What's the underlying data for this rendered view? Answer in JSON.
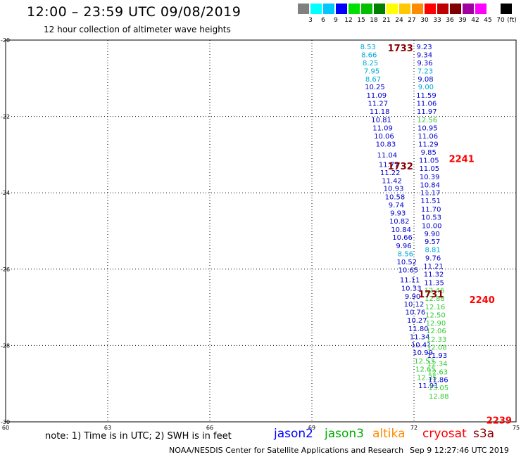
{
  "title": "12:00 – 23:59 UTC 09/08/2019",
  "subtitle": "12 hour collection of altimeter wave heights",
  "colorbar": {
    "unit": "(ft)",
    "stops": [
      {
        "label": "3",
        "color": "#808080"
      },
      {
        "label": "6",
        "color": "#00ffff"
      },
      {
        "label": "9",
        "color": "#00c8ff"
      },
      {
        "label": "12",
        "color": "#0000ff"
      },
      {
        "label": "15",
        "color": "#00e000"
      },
      {
        "label": "18",
        "color": "#00c000"
      },
      {
        "label": "21",
        "color": "#008000"
      },
      {
        "label": "24",
        "color": "#ffff00"
      },
      {
        "label": "27",
        "color": "#ffc800"
      },
      {
        "label": "30",
        "color": "#ff8c00"
      },
      {
        "label": "33",
        "color": "#ff0000"
      },
      {
        "label": "36",
        "color": "#c00000"
      },
      {
        "label": "39",
        "color": "#800000"
      },
      {
        "label": "42",
        "color": "#a000a0"
      },
      {
        "label": "45",
        "color": "#ff00ff"
      },
      {
        "label": "70",
        "color": "#ffffff"
      },
      {
        "label": "",
        "color": "#000000"
      }
    ]
  },
  "chart_data": {
    "type": "scatter",
    "xlim": [
      60,
      75
    ],
    "ylim": [
      -30,
      -20
    ],
    "x_ticks": [
      "60",
      "63",
      "66",
      "69",
      "72",
      "75"
    ],
    "y_ticks": [
      "-20",
      "-22",
      "-24",
      "-26",
      "-28",
      "-30"
    ],
    "grid": true,
    "track_labels": [
      {
        "text": "1733",
        "x": 71.6,
        "y": -20.2,
        "color": "#8b0000"
      },
      {
        "text": "1732",
        "x": 71.6,
        "y": -23.3,
        "color": "#8b0000"
      },
      {
        "text": "1731",
        "x": 72.5,
        "y": -26.65,
        "color": "#8b0000"
      },
      {
        "text": "2241",
        "x": 73.4,
        "y": -23.1,
        "color": "#ff0000"
      },
      {
        "text": "2240",
        "x": 74.0,
        "y": -26.8,
        "color": "#ff0000"
      },
      {
        "text": "2239",
        "x": 74.5,
        "y": -29.95,
        "color": "#ff0000"
      }
    ],
    "series": [
      {
        "points": [
          {
            "x": 70.65,
            "y": -20.17,
            "label": "8.53",
            "color": "#00a8d8"
          },
          {
            "x": 70.68,
            "y": -20.38,
            "label": "8.66",
            "color": "#00a8d8"
          },
          {
            "x": 70.72,
            "y": -20.59,
            "label": "8.25",
            "color": "#00a8d8"
          },
          {
            "x": 70.76,
            "y": -20.8,
            "label": "7.95",
            "color": "#00a8d8"
          },
          {
            "x": 70.8,
            "y": -21.01,
            "label": "8.67",
            "color": "#00a8d8"
          },
          {
            "x": 70.85,
            "y": -21.22,
            "label": "10.25",
            "color": "#0000cc"
          },
          {
            "x": 70.9,
            "y": -21.44,
            "label": "11.09",
            "color": "#0000cc"
          },
          {
            "x": 70.94,
            "y": -21.65,
            "label": "11.27",
            "color": "#0000cc"
          },
          {
            "x": 70.99,
            "y": -21.86,
            "label": "11.18",
            "color": "#0000cc"
          },
          {
            "x": 71.04,
            "y": -22.08,
            "label": "10.81",
            "color": "#0000cc"
          },
          {
            "x": 71.08,
            "y": -22.29,
            "label": "11.09",
            "color": "#0000cc"
          },
          {
            "x": 71.12,
            "y": -22.5,
            "label": "10.06",
            "color": "#0000cc"
          },
          {
            "x": 71.17,
            "y": -22.72,
            "label": "10.83",
            "color": "#0000cc"
          },
          {
            "x": 71.21,
            "y": -23.0,
            "label": "11.04",
            "color": "#0000cc"
          },
          {
            "x": 71.26,
            "y": -23.25,
            "label": "11.77",
            "color": "#0000cc"
          },
          {
            "x": 71.3,
            "y": -23.46,
            "label": "11.22",
            "color": "#0000cc"
          },
          {
            "x": 71.35,
            "y": -23.67,
            "label": "11.42",
            "color": "#0000cc"
          },
          {
            "x": 71.4,
            "y": -23.88,
            "label": "10.93",
            "color": "#0000cc"
          },
          {
            "x": 71.44,
            "y": -24.1,
            "label": "10.58",
            "color": "#0000cc"
          },
          {
            "x": 71.48,
            "y": -24.31,
            "label": "9.74",
            "color": "#0000cc"
          },
          {
            "x": 71.53,
            "y": -24.52,
            "label": "9.93",
            "color": "#0000cc"
          },
          {
            "x": 71.57,
            "y": -24.73,
            "label": "10.82",
            "color": "#0000cc"
          },
          {
            "x": 71.62,
            "y": -24.95,
            "label": "10.84",
            "color": "#0000cc"
          },
          {
            "x": 71.66,
            "y": -25.16,
            "label": "10.66",
            "color": "#0000cc"
          },
          {
            "x": 71.7,
            "y": -25.38,
            "label": "9.96",
            "color": "#0000cc"
          },
          {
            "x": 71.75,
            "y": -25.59,
            "label": "8.56",
            "color": "#00a8d8"
          },
          {
            "x": 71.79,
            "y": -25.8,
            "label": "10.52",
            "color": "#0000cc"
          },
          {
            "x": 71.83,
            "y": -26.01,
            "label": "10.65",
            "color": "#0000cc"
          },
          {
            "x": 71.88,
            "y": -26.27,
            "label": "11.11",
            "color": "#0000cc"
          },
          {
            "x": 71.92,
            "y": -26.49,
            "label": "10.33",
            "color": "#0000cc"
          },
          {
            "x": 71.96,
            "y": -26.7,
            "label": "9.90",
            "color": "#0000cc"
          },
          {
            "x": 72.0,
            "y": -26.91,
            "label": "10.12",
            "color": "#0000cc"
          },
          {
            "x": 72.04,
            "y": -27.12,
            "label": "10.76",
            "color": "#0000cc"
          },
          {
            "x": 72.09,
            "y": -27.33,
            "label": "10.27",
            "color": "#0000cc"
          },
          {
            "x": 72.13,
            "y": -27.55,
            "label": "11.80",
            "color": "#0000cc"
          },
          {
            "x": 72.17,
            "y": -27.76,
            "label": "11.34",
            "color": "#0000cc"
          },
          {
            "x": 72.21,
            "y": -27.97,
            "label": "10.41",
            "color": "#0000cc"
          },
          {
            "x": 72.26,
            "y": -28.18,
            "label": "10.99",
            "color": "#0000cc"
          },
          {
            "x": 72.3,
            "y": -28.4,
            "label": "12.53",
            "color": "#33cc33"
          },
          {
            "x": 72.34,
            "y": -28.61,
            "label": "12.65",
            "color": "#33cc33"
          },
          {
            "x": 72.38,
            "y": -28.83,
            "label": "12.35",
            "color": "#33cc33"
          },
          {
            "x": 72.42,
            "y": -29.04,
            "label": "11.91",
            "color": "#0000cc"
          }
        ]
      },
      {
        "points": [
          {
            "x": 72.3,
            "y": -20.17,
            "label": "9.23",
            "color": "#0000cc"
          },
          {
            "x": 72.31,
            "y": -20.38,
            "label": "9.34",
            "color": "#0000cc"
          },
          {
            "x": 72.32,
            "y": -20.59,
            "label": "9.36",
            "color": "#0000cc"
          },
          {
            "x": 72.33,
            "y": -20.8,
            "label": "7.23",
            "color": "#00a8d8"
          },
          {
            "x": 72.34,
            "y": -21.01,
            "label": "9.08",
            "color": "#0000cc"
          },
          {
            "x": 72.35,
            "y": -21.22,
            "label": "9.00",
            "color": "#00a8d8"
          },
          {
            "x": 72.36,
            "y": -21.44,
            "label": "11.59",
            "color": "#0000cc"
          },
          {
            "x": 72.37,
            "y": -21.65,
            "label": "11.06",
            "color": "#0000cc"
          },
          {
            "x": 72.38,
            "y": -21.86,
            "label": "11.97",
            "color": "#0000cc"
          },
          {
            "x": 72.39,
            "y": -22.08,
            "label": "12.56",
            "color": "#33cc33"
          },
          {
            "x": 72.4,
            "y": -22.29,
            "label": "10.95",
            "color": "#0000cc"
          },
          {
            "x": 72.41,
            "y": -22.5,
            "label": "11.06",
            "color": "#0000cc"
          },
          {
            "x": 72.42,
            "y": -22.72,
            "label": "11.29",
            "color": "#0000cc"
          },
          {
            "x": 72.43,
            "y": -22.93,
            "label": "9.85",
            "color": "#0000cc"
          },
          {
            "x": 72.44,
            "y": -23.14,
            "label": "11.05",
            "color": "#0000cc"
          },
          {
            "x": 72.45,
            "y": -23.35,
            "label": "11.05",
            "color": "#0000cc"
          },
          {
            "x": 72.46,
            "y": -23.57,
            "label": "10.39",
            "color": "#0000cc"
          },
          {
            "x": 72.47,
            "y": -23.78,
            "label": "10.84",
            "color": "#0000cc"
          },
          {
            "x": 72.48,
            "y": -23.99,
            "label": "11.17",
            "color": "#0000cc"
          },
          {
            "x": 72.49,
            "y": -24.2,
            "label": "11.51",
            "color": "#0000cc"
          },
          {
            "x": 72.5,
            "y": -24.42,
            "label": "11.70",
            "color": "#0000cc"
          },
          {
            "x": 72.51,
            "y": -24.63,
            "label": "10.53",
            "color": "#0000cc"
          },
          {
            "x": 72.52,
            "y": -24.85,
            "label": "10.00",
            "color": "#0000cc"
          },
          {
            "x": 72.53,
            "y": -25.06,
            "label": "9.90",
            "color": "#0000cc"
          },
          {
            "x": 72.54,
            "y": -25.27,
            "label": "9.57",
            "color": "#0000cc"
          },
          {
            "x": 72.55,
            "y": -25.48,
            "label": "8.81",
            "color": "#00a8d8"
          },
          {
            "x": 72.56,
            "y": -25.7,
            "label": "9.76",
            "color": "#0000cc"
          },
          {
            "x": 72.57,
            "y": -25.91,
            "label": "11.21",
            "color": "#0000cc"
          },
          {
            "x": 72.58,
            "y": -26.12,
            "label": "11.32",
            "color": "#0000cc"
          },
          {
            "x": 72.59,
            "y": -26.34,
            "label": "11.35",
            "color": "#0000cc"
          },
          {
            "x": 72.6,
            "y": -26.55,
            "label": "12.46",
            "color": "#33cc33"
          },
          {
            "x": 72.61,
            "y": -26.76,
            "label": "12.88",
            "color": "#33cc33"
          },
          {
            "x": 72.62,
            "y": -26.98,
            "label": "12.16",
            "color": "#33cc33"
          },
          {
            "x": 72.63,
            "y": -27.19,
            "label": "12.50",
            "color": "#33cc33"
          },
          {
            "x": 72.64,
            "y": -27.4,
            "label": "12.90",
            "color": "#33cc33"
          },
          {
            "x": 72.65,
            "y": -27.61,
            "label": "12.06",
            "color": "#33cc33"
          },
          {
            "x": 72.66,
            "y": -27.83,
            "label": "12.33",
            "color": "#33cc33"
          },
          {
            "x": 72.67,
            "y": -28.04,
            "label": "12.08",
            "color": "#33cc33"
          },
          {
            "x": 72.68,
            "y": -28.25,
            "label": "11.93",
            "color": "#0000cc"
          },
          {
            "x": 72.69,
            "y": -28.46,
            "label": "12.34",
            "color": "#33cc33"
          },
          {
            "x": 72.7,
            "y": -28.68,
            "label": "12.63",
            "color": "#33cc33"
          },
          {
            "x": 72.71,
            "y": -28.89,
            "label": "11.86",
            "color": "#0000cc"
          },
          {
            "x": 72.72,
            "y": -29.1,
            "label": "13.05",
            "color": "#33cc33"
          },
          {
            "x": 72.73,
            "y": -29.32,
            "label": "12.88",
            "color": "#33cc33"
          }
        ]
      }
    ]
  },
  "note": "note: 1) Time is in UTC; 2) SWH is in feet",
  "satellites": [
    {
      "name": "jason2",
      "color": "#0000ff"
    },
    {
      "name": "jason3",
      "color": "#00b000"
    },
    {
      "name": "altika",
      "color": "#ff8c00"
    },
    {
      "name": "cryosat",
      "color": "#ff0000"
    },
    {
      "name": "s3a",
      "color": "#8b0000"
    }
  ],
  "footer": "NOAA/NESDIS Center for Satellite Applications and Research",
  "footer_time": "Sep  9 12:27:46 UTC 2019"
}
